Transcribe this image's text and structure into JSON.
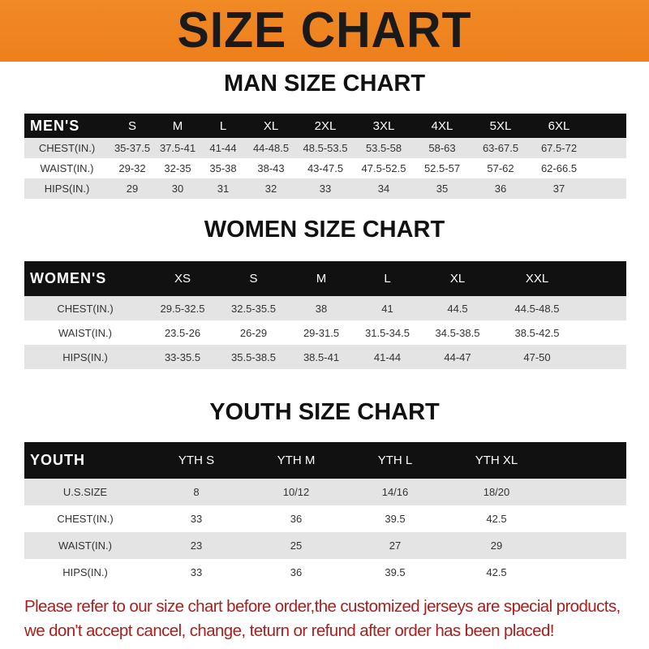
{
  "banner_title": "SIZE CHART",
  "men": {
    "title": "MAN SIZE CHART",
    "header": [
      "MEN'S",
      "S",
      "M",
      "L",
      "XL",
      "2XL",
      "3XL",
      "4XL",
      "5XL",
      "6XL"
    ],
    "rows": [
      [
        "CHEST(IN.)",
        "35-37.5",
        "37.5-41",
        "41-44",
        "44-48.5",
        "48.5-53.5",
        "53.5-58",
        "58-63",
        "63-67.5",
        "67.5-72"
      ],
      [
        "WAIST(IN.)",
        "29-32",
        "32-35",
        "35-38",
        "38-43",
        "43-47.5",
        "47.5-52.5",
        "52.5-57",
        "57-62",
        "62-66.5"
      ],
      [
        "HIPS(IN.)",
        "29",
        "30",
        "31",
        "32",
        "33",
        "34",
        "35",
        "36",
        "37"
      ]
    ]
  },
  "women": {
    "title": "WOMEN SIZE CHART",
    "header": [
      "WOMEN'S",
      "XS",
      "S",
      "M",
      "L",
      "XL",
      "XXL"
    ],
    "rows": [
      [
        "CHEST(IN.)",
        "29.5-32.5",
        "32.5-35.5",
        "38",
        "41",
        "44.5",
        "44.5-48.5"
      ],
      [
        "WAIST(IN.)",
        "23.5-26",
        "26-29",
        "29-31.5",
        "31.5-34.5",
        "34.5-38.5",
        "38.5-42.5"
      ],
      [
        "HIPS(IN.)",
        "33-35.5",
        "35.5-38.5",
        "38.5-41",
        "41-44",
        "44-47",
        "47-50"
      ]
    ]
  },
  "youth": {
    "title": "YOUTH SIZE CHART",
    "header": [
      "YOUTH",
      "YTH S",
      "YTH M",
      "YTH L",
      "YTH XL"
    ],
    "rows": [
      [
        "U.S.SIZE",
        "8",
        "10/12",
        "14/16",
        "18/20"
      ],
      [
        "CHEST(IN.)",
        "33",
        "36",
        "39.5",
        "42.5"
      ],
      [
        "WAIST(IN.)",
        "23",
        "25",
        "27",
        "29"
      ],
      [
        "HIPS(IN.)",
        "33",
        "36",
        "39.5",
        "42.5"
      ]
    ]
  },
  "notice": {
    "line1": "Please refer to our size chart before order,the customized jerseys are special products,",
    "line2": "we don't accept cancel, change, teturn or refund after order has been placed!"
  },
  "colors": {
    "banner": "#ef841f",
    "header_row": "#111111",
    "stripe": "#e4e4e4",
    "notice": "#a8201f"
  }
}
